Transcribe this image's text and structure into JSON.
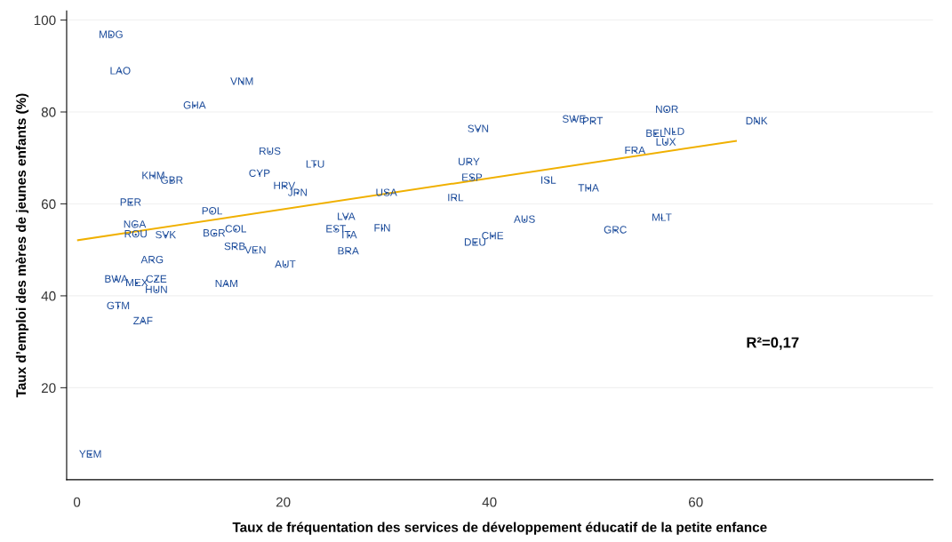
{
  "chart_data": {
    "type": "scatter",
    "xlabel": "Taux de fréquentation des services de développement éducatif de la petite enfance",
    "ylabel": "Taux d’emploi des mères de jeunes enfants (%)",
    "xlim": [
      -1,
      83
    ],
    "ylim": [
      0,
      102
    ],
    "xticks": [
      0,
      20,
      40,
      60
    ],
    "yticks": [
      20,
      40,
      60,
      80,
      100
    ],
    "grid": "y",
    "legend": false,
    "annotations": [
      "R²=0,17"
    ],
    "series": [
      {
        "type": "scatter",
        "color": "#1f4e9c",
        "marker": "circle",
        "x": [
          3.3,
          4.2,
          16.0,
          11.4,
          38.9,
          48.2,
          50.0,
          57.2,
          65.9,
          56.1,
          57.9,
          57.1,
          54.1,
          18.7,
          23.1,
          38.0,
          17.7,
          38.3,
          45.7,
          7.4,
          9.2,
          20.1,
          21.4,
          30.0,
          49.6,
          36.7,
          5.2,
          13.1,
          26.1,
          43.4,
          56.7,
          5.6,
          15.4,
          25.1,
          29.6,
          52.2,
          5.7,
          8.6,
          13.3,
          26.4,
          40.3,
          38.6,
          15.3,
          17.3,
          26.3,
          7.3,
          20.2,
          3.8,
          5.8,
          7.7,
          7.7,
          14.5,
          4.0,
          6.4,
          1.3
        ],
        "values": [
          96.7,
          88.8,
          86.5,
          81.3,
          76.2,
          78.3,
          77.9,
          80.4,
          77.9,
          75.2,
          75.6,
          73.3,
          71.5,
          71.3,
          68.5,
          69.0,
          66.5,
          65.6,
          65.0,
          66.0,
          65.0,
          63.8,
          62.3,
          62.3,
          63.3,
          61.2,
          60.2,
          58.3,
          57.1,
          56.5,
          56.9,
          55.4,
          54.4,
          54.4,
          54.6,
          54.2,
          53.3,
          53.1,
          53.5,
          53.1,
          52.9,
          51.5,
          50.6,
          49.8,
          49.6,
          47.7,
          46.7,
          43.5,
          42.7,
          43.5,
          41.2,
          42.5,
          37.7,
          34.4,
          5.4
        ],
        "value_labels": [
          "MDG",
          "LAO",
          "VNM",
          "GHA",
          "SVN",
          "SWE",
          "PRT",
          "NOR",
          "DNK",
          "BEL",
          "NLD",
          "LUX",
          "FRA",
          "RUS",
          "LTU",
          "URY",
          "CYP",
          "ESP",
          "ISL",
          "KHM",
          "GBR",
          "HRV",
          "JPN",
          "USA",
          "THA",
          "IRL",
          "PER",
          "POL",
          "LVA",
          "AUS",
          "MLT",
          "NGA",
          "COL",
          "EST",
          "FIN",
          "GRC",
          "ROU",
          "SVK",
          "BGR",
          "ITA",
          "CHE",
          "DEU",
          "SRB",
          "VEN",
          "BRA",
          "ARG",
          "AUT",
          "BWA",
          "MEX",
          "CZE",
          "HUN",
          "NAM",
          "GTM",
          "ZAF",
          "YEM"
        ]
      },
      {
        "type": "line",
        "color": "#f0b000",
        "marker": "none",
        "x": [
          0.1,
          63.9
        ],
        "values": [
          52.1,
          73.7
        ]
      }
    ]
  }
}
